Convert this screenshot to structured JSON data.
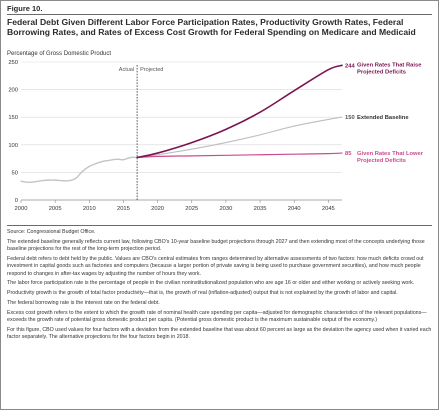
{
  "figure": {
    "label": "Figure 10.",
    "title": "Federal Debt Given Different Labor Force Participation Rates, Productivity Growth Rates, Federal Borrowing Rates, and Rates of Excess Cost Growth for Federal Spending on Medicare and Medicaid",
    "subtitle": "Percentage of Gross Domestic Product"
  },
  "chart_data": {
    "type": "line",
    "title": "Federal Debt Given Different Labor Force Participation Rates, Productivity Growth Rates, Federal Borrowing Rates, and Rates of Excess Cost Growth for Federal Spending on Medicare and Medicaid",
    "xlabel": "",
    "ylabel": "Percentage of Gross Domestic Product",
    "xlim": [
      2000,
      2047
    ],
    "ylim": [
      0,
      250
    ],
    "xticks": [
      2000,
      2005,
      2010,
      2015,
      2020,
      2025,
      2030,
      2035,
      2040,
      2045
    ],
    "yticks": [
      0,
      50,
      100,
      150,
      200,
      250
    ],
    "grid": "horizontal",
    "divider": {
      "x": 2017,
      "left_label": "Actual",
      "right_label": "Projected"
    },
    "colors": {
      "raise": "#7a1553",
      "baseline": "#bdbdbd",
      "lower": "#cc4b8d",
      "actual": "#c4c4c4"
    },
    "series": [
      {
        "key": "actual",
        "name": "",
        "x": [
          2000,
          2001,
          2002,
          2003,
          2004,
          2005,
          2006,
          2007,
          2008,
          2009,
          2010,
          2011,
          2012,
          2013,
          2014,
          2015,
          2016,
          2017
        ],
        "y": [
          34,
          32,
          33,
          35,
          36,
          36,
          35,
          35,
          39,
          52,
          61,
          66,
          70,
          72,
          74,
          73,
          77,
          77
        ]
      },
      {
        "key": "raise",
        "name": "Given Rates That Raise Projected Deficits",
        "end_label": "244",
        "x": [
          2017,
          2020,
          2025,
          2030,
          2035,
          2040,
          2045,
          2047
        ],
        "y": [
          77,
          85,
          104,
          128,
          159,
          198,
          236,
          244
        ]
      },
      {
        "key": "baseline",
        "name": "Extended Baseline",
        "end_label": "150",
        "x": [
          2017,
          2020,
          2025,
          2030,
          2035,
          2040,
          2045,
          2047
        ],
        "y": [
          77,
          82,
          92,
          104,
          118,
          134,
          146,
          150
        ]
      },
      {
        "key": "lower",
        "name": "Given Rates That Lower Projected Deficits",
        "end_label": "85",
        "x": [
          2017,
          2020,
          2025,
          2030,
          2035,
          2040,
          2045,
          2047
        ],
        "y": [
          77,
          79,
          80,
          81,
          82,
          83,
          84,
          85
        ]
      }
    ]
  },
  "notes": {
    "source": "Source: Congressional Budget Office.",
    "paragraphs": [
      "The extended baseline generally reflects current law, following CBO's 10-year baseline budget projections through 2027 and then extending most of the concepts underlying those baseline projections for the rest of the long-term projection period.",
      "Federal debt refers to debt held by the public. Values are CBO's central estimates from ranges determined by alternative assessments of two factors: how much deficits crowd out investment in capital goods such as factories and computers (because a larger portion of private saving is being used to purchase government securities), and how much people respond to changes in after-tax wages by adjusting the number of hours they work.",
      "The labor force participation rate is the percentage of people in the civilian noninstitutionalized population who are age 16 or older and either working or actively seeking work.",
      "Productivity growth is the growth of total factor productivity—that is, the growth of real (inflation-adjusted) output that is not explained by the growth of labor and capital.",
      "The federal borrowing rate is the interest rate on the federal debt.",
      "Excess cost growth refers to the extent to which the growth rate of nominal health care spending per capita—adjusted for demographic characteristics of the relevant populations—exceeds the growth rate of potential gross domestic product per capita. (Potential gross domestic product is the maximum sustainable output of the economy.)",
      "For this figure, CBO used values for four factors with a deviation from the extended baseline that was about 60 percent as large as the deviation the agency used when it varied each factor separately. The alternative projections for the four factors begin in 2018."
    ]
  }
}
